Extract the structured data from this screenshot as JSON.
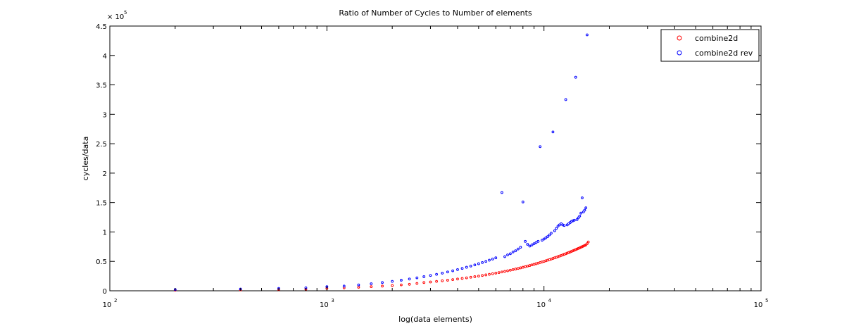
{
  "chart_data": {
    "type": "scatter",
    "title": "Ratio of Number of Cycles to Number of elements",
    "xlabel": "log(data elements)",
    "ylabel": "cycles/data",
    "xscale": "log",
    "xlim": [
      100,
      100000
    ],
    "ylim": [
      0,
      450000
    ],
    "y_multiplier_label": "× 10",
    "y_multiplier_exponent": "5",
    "x_ticks": [
      {
        "value": 100,
        "base": "10",
        "exp": "2"
      },
      {
        "value": 1000,
        "base": "10",
        "exp": "3"
      },
      {
        "value": 10000,
        "base": "10",
        "exp": "4"
      },
      {
        "value": 100000,
        "base": "10",
        "exp": "5"
      }
    ],
    "y_ticks": [
      {
        "value": 0,
        "label": "0"
      },
      {
        "value": 50000,
        "label": "0.5"
      },
      {
        "value": 100000,
        "label": "1"
      },
      {
        "value": 150000,
        "label": "1.5"
      },
      {
        "value": 200000,
        "label": "2"
      },
      {
        "value": 250000,
        "label": "2.5"
      },
      {
        "value": 300000,
        "label": "3"
      },
      {
        "value": 350000,
        "label": "3.5"
      },
      {
        "value": 400000,
        "label": "4"
      },
      {
        "value": 450000,
        "label": "4.5"
      }
    ],
    "grid": false,
    "legend_position": "top-right",
    "series": [
      {
        "name": "combine2d",
        "color": "#ff0000",
        "points": [
          [
            200,
            1000
          ],
          [
            400,
            1500
          ],
          [
            600,
            2000
          ],
          [
            800,
            2500
          ],
          [
            1000,
            4000
          ],
          [
            1200,
            5000
          ],
          [
            1400,
            6000
          ],
          [
            1600,
            7000
          ],
          [
            1800,
            8000
          ],
          [
            2000,
            9000
          ],
          [
            2200,
            10000
          ],
          [
            2400,
            11000
          ],
          [
            2600,
            12500
          ],
          [
            2800,
            14000
          ],
          [
            3000,
            15000
          ],
          [
            3200,
            16000
          ],
          [
            3400,
            17000
          ],
          [
            3600,
            18000
          ],
          [
            3800,
            19000
          ],
          [
            4000,
            20000
          ],
          [
            4200,
            21000
          ],
          [
            4400,
            22000
          ],
          [
            4600,
            23000
          ],
          [
            4800,
            24000
          ],
          [
            5000,
            25000
          ],
          [
            5200,
            26000
          ],
          [
            5400,
            27000
          ],
          [
            5600,
            28000
          ],
          [
            5800,
            29000
          ],
          [
            6000,
            30000
          ],
          [
            6200,
            31000
          ],
          [
            6400,
            32000
          ],
          [
            6600,
            33000
          ],
          [
            6800,
            34000
          ],
          [
            7000,
            35000
          ],
          [
            7200,
            36000
          ],
          [
            7400,
            37000
          ],
          [
            7600,
            38000
          ],
          [
            7800,
            39000
          ],
          [
            8000,
            40000
          ],
          [
            8200,
            41000
          ],
          [
            8400,
            42000
          ],
          [
            8600,
            43000
          ],
          [
            8800,
            44000
          ],
          [
            9000,
            45000
          ],
          [
            9200,
            46000
          ],
          [
            9400,
            47000
          ],
          [
            9600,
            48000
          ],
          [
            9800,
            49000
          ],
          [
            10000,
            50000
          ],
          [
            10200,
            51000
          ],
          [
            10400,
            52000
          ],
          [
            10600,
            53000
          ],
          [
            10800,
            54000
          ],
          [
            11000,
            55000
          ],
          [
            11200,
            56000
          ],
          [
            11400,
            57000
          ],
          [
            11600,
            58000
          ],
          [
            11800,
            59000
          ],
          [
            12000,
            60000
          ],
          [
            12200,
            61000
          ],
          [
            12400,
            62000
          ],
          [
            12600,
            63000
          ],
          [
            12800,
            64000
          ],
          [
            13000,
            65000
          ],
          [
            13200,
            66000
          ],
          [
            13400,
            67000
          ],
          [
            13600,
            68000
          ],
          [
            13800,
            69000
          ],
          [
            14000,
            70000
          ],
          [
            14200,
            71000
          ],
          [
            14400,
            72000
          ],
          [
            14600,
            73000
          ],
          [
            14800,
            74000
          ],
          [
            15000,
            75000
          ],
          [
            15200,
            76000
          ],
          [
            15400,
            77000
          ],
          [
            15600,
            78000
          ],
          [
            15800,
            80000
          ],
          [
            16000,
            83000
          ]
        ]
      },
      {
        "name": "combine2d rev",
        "color": "#0000ff",
        "points": [
          [
            200,
            2000
          ],
          [
            400,
            3000
          ],
          [
            600,
            4000
          ],
          [
            800,
            5000
          ],
          [
            1000,
            7000
          ],
          [
            1200,
            8000
          ],
          [
            1400,
            10000
          ],
          [
            1600,
            12000
          ],
          [
            1800,
            14000
          ],
          [
            2000,
            16000
          ],
          [
            2200,
            18000
          ],
          [
            2400,
            20000
          ],
          [
            2600,
            22000
          ],
          [
            2800,
            24000
          ],
          [
            3000,
            26000
          ],
          [
            3200,
            28000
          ],
          [
            3400,
            30000
          ],
          [
            3600,
            32000
          ],
          [
            3800,
            34000
          ],
          [
            4000,
            36000
          ],
          [
            4200,
            38000
          ],
          [
            4400,
            40000
          ],
          [
            4600,
            42000
          ],
          [
            4800,
            44000
          ],
          [
            5000,
            46000
          ],
          [
            5200,
            48000
          ],
          [
            5400,
            50000
          ],
          [
            5600,
            52000
          ],
          [
            5800,
            54000
          ],
          [
            6000,
            56000
          ],
          [
            6400,
            167000
          ],
          [
            6600,
            58000
          ],
          [
            6800,
            61000
          ],
          [
            7000,
            63000
          ],
          [
            7200,
            66000
          ],
          [
            7400,
            68000
          ],
          [
            7600,
            71000
          ],
          [
            7800,
            74000
          ],
          [
            8000,
            151000
          ],
          [
            8200,
            84000
          ],
          [
            8400,
            79000
          ],
          [
            8600,
            76000
          ],
          [
            8800,
            78000
          ],
          [
            9000,
            80000
          ],
          [
            9200,
            82000
          ],
          [
            9400,
            84000
          ],
          [
            9600,
            245000
          ],
          [
            9800,
            86000
          ],
          [
            10000,
            88000
          ],
          [
            10200,
            90000
          ],
          [
            10400,
            92000
          ],
          [
            10600,
            95000
          ],
          [
            10800,
            98000
          ],
          [
            11000,
            270000
          ],
          [
            11200,
            102000
          ],
          [
            11400,
            106000
          ],
          [
            11600,
            110000
          ],
          [
            11800,
            112000
          ],
          [
            12000,
            114000
          ],
          [
            12200,
            112000
          ],
          [
            12400,
            111000
          ],
          [
            12600,
            325000
          ],
          [
            12800,
            112000
          ],
          [
            13000,
            114000
          ],
          [
            13200,
            116000
          ],
          [
            13400,
            118000
          ],
          [
            13600,
            119000
          ],
          [
            13800,
            120000
          ],
          [
            14000,
            363000
          ],
          [
            14200,
            121000
          ],
          [
            14400,
            124000
          ],
          [
            14600,
            127000
          ],
          [
            14800,
            132000
          ],
          [
            15000,
            158000
          ],
          [
            15200,
            134000
          ],
          [
            15400,
            137000
          ],
          [
            15600,
            141000
          ],
          [
            15800,
            435000
          ]
        ]
      }
    ]
  }
}
